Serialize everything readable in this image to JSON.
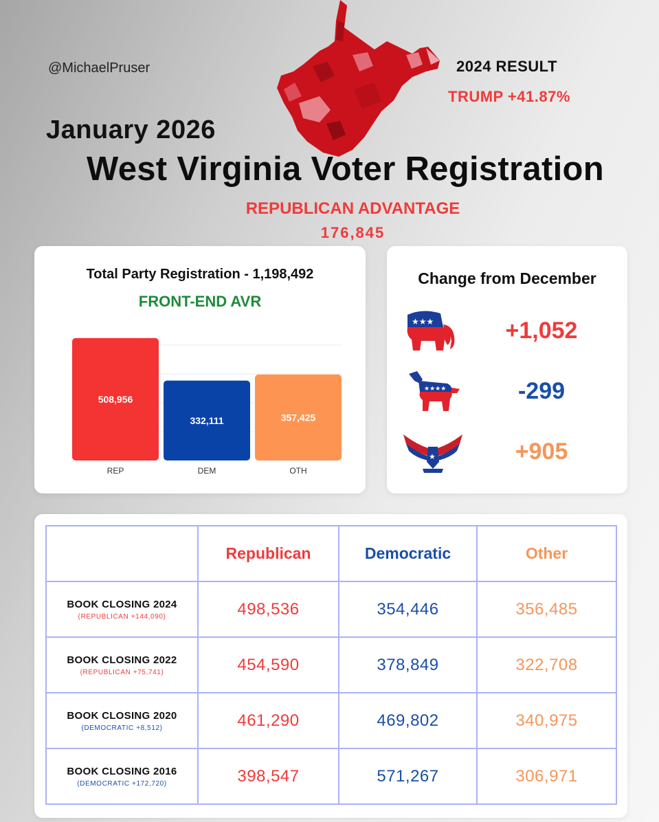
{
  "handle": "@MichaelPruser",
  "result": {
    "label": "2024 RESULT",
    "value": "TRUMP +41.87%"
  },
  "month": "January 2026",
  "title": "West Virginia Voter Registration",
  "advantage": {
    "label": "REPUBLICAN ADVANTAGE",
    "value": "176,845"
  },
  "colors": {
    "rep": "#f43333",
    "dem": "#0a43a8",
    "oth": "#fe9452",
    "rep_text": "#ef3b3b",
    "dem_text": "#1a4fa8",
    "oth_text": "#f5965a",
    "green": "#1e8a3c"
  },
  "chart_data": {
    "type": "bar",
    "title": "Total Party Registration - 1,198,492",
    "subtitle": "FRONT-END AVR",
    "categories": [
      "REP",
      "DEM",
      "OTH"
    ],
    "values": [
      508956,
      332111,
      357425
    ],
    "value_labels": [
      "508,956",
      "332,111",
      "357,425"
    ],
    "ylim": [
      0,
      600000
    ],
    "grid": true
  },
  "change": {
    "title": "Change from December",
    "items": [
      {
        "icon": "republican-elephant-icon",
        "value": "+1,052"
      },
      {
        "icon": "democratic-donkey-icon",
        "value": "-299"
      },
      {
        "icon": "eagle-icon",
        "value": "+905"
      }
    ]
  },
  "table": {
    "headers": [
      "",
      "Republican",
      "Democratic",
      "Other"
    ],
    "rows": [
      {
        "label": "BOOK CLOSING 2024",
        "sub": "(REPUBLICAN +144,090)",
        "sub_party": "rep",
        "rep": "498,536",
        "dem": "354,446",
        "oth": "356,485"
      },
      {
        "label": "BOOK CLOSING 2022",
        "sub": "(REPUBLICAN +75,741)",
        "sub_party": "rep",
        "rep": "454,590",
        "dem": "378,849",
        "oth": "322,708"
      },
      {
        "label": "BOOK CLOSING 2020",
        "sub": "(DEMOCRATIC +8,512)",
        "sub_party": "dem",
        "rep": "461,290",
        "dem": "469,802",
        "oth": "340,975"
      },
      {
        "label": "BOOK CLOSING 2016",
        "sub": "(DEMOCRATIC +172,720)",
        "sub_party": "dem",
        "rep": "398,547",
        "dem": "571,267",
        "oth": "306,971"
      }
    ]
  }
}
